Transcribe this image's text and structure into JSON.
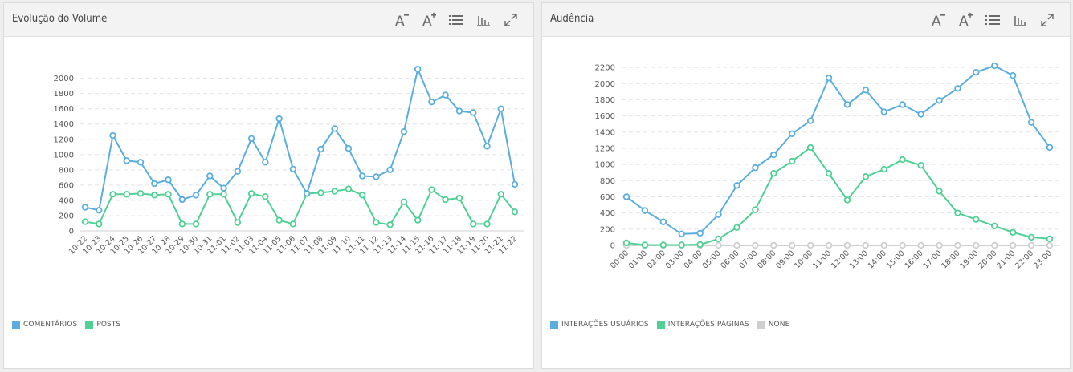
{
  "panels": [
    {
      "title": "Evolução do Volume",
      "legend": [
        {
          "label": "COMENTÁRIOS",
          "color": "#5aaedf"
        },
        {
          "label": "POSTS",
          "color": "#4fd195"
        }
      ]
    },
    {
      "title": "Audência",
      "legend": [
        {
          "label": "INTERAÇÕES USUÁRIOS",
          "color": "#5aaedf"
        },
        {
          "label": "INTERAÇÕES PÁGINAS",
          "color": "#4fd195"
        },
        {
          "label": "NONE",
          "color": "#cfcfcf"
        }
      ]
    }
  ],
  "toolbar_icons": [
    "font-decrease-icon",
    "font-increase-icon",
    "list-icon",
    "bar-chart-icon",
    "expand-icon"
  ],
  "chart_data": [
    {
      "type": "line",
      "title": "Evolução do Volume",
      "xlabel": "",
      "ylabel": "",
      "ylim": [
        0,
        2200
      ],
      "yticks": [
        0,
        200,
        400,
        600,
        800,
        1000,
        1200,
        1400,
        1600,
        1800,
        2000
      ],
      "grid": true,
      "legend_position": "bottom-left",
      "categories": [
        "10-22",
        "10-23",
        "10-24",
        "10-25",
        "10-26",
        "10-27",
        "10-28",
        "10-29",
        "10-30",
        "10-31",
        "11-01",
        "11-02",
        "11-03",
        "11-04",
        "11-05",
        "11-06",
        "11-07",
        "11-08",
        "11-09",
        "11-10",
        "11-11",
        "11-12",
        "11-13",
        "11-14",
        "11-15",
        "11-16",
        "11-17",
        "11-18",
        "11-19",
        "11-20",
        "11-21",
        "11-22"
      ],
      "series": [
        {
          "name": "COMENTÁRIOS",
          "color": "#5aaedf",
          "values": [
            310,
            270,
            1250,
            920,
            900,
            620,
            670,
            410,
            470,
            720,
            560,
            780,
            1210,
            900,
            1470,
            810,
            490,
            1070,
            1340,
            1080,
            720,
            710,
            800,
            1300,
            2120,
            1690,
            1780,
            1570,
            1550,
            1110,
            1600,
            610
          ]
        },
        {
          "name": "POSTS",
          "color": "#4fd195",
          "values": [
            120,
            90,
            480,
            480,
            490,
            470,
            480,
            90,
            90,
            480,
            480,
            110,
            490,
            450,
            140,
            90,
            490,
            500,
            520,
            550,
            470,
            110,
            80,
            380,
            140,
            540,
            410,
            430,
            90,
            90,
            480,
            250
          ]
        }
      ]
    },
    {
      "type": "line",
      "title": "Audência",
      "xlabel": "",
      "ylabel": "",
      "ylim": [
        0,
        2300
      ],
      "yticks": [
        0,
        200,
        400,
        600,
        800,
        1000,
        1200,
        1400,
        1600,
        1800,
        2000,
        2200
      ],
      "grid": true,
      "legend_position": "bottom-left",
      "categories": [
        "00:00",
        "01:00",
        "02:00",
        "03:00",
        "04:00",
        "05:00",
        "06:00",
        "07:00",
        "08:00",
        "09:00",
        "10:00",
        "11:00",
        "12:00",
        "13:00",
        "14:00",
        "15:00",
        "16:00",
        "17:00",
        "18:00",
        "19:00",
        "20:00",
        "21:00",
        "22:00",
        "23:00"
      ],
      "series": [
        {
          "name": "INTERAÇÕES USUÁRIOS",
          "color": "#5aaedf",
          "values": [
            600,
            430,
            290,
            140,
            150,
            380,
            740,
            960,
            1120,
            1380,
            1540,
            2070,
            1740,
            1920,
            1650,
            1740,
            1620,
            1790,
            1940,
            2140,
            2220,
            2100,
            1520,
            1210
          ]
        },
        {
          "name": "INTERAÇÕES PÁGINAS",
          "color": "#4fd195",
          "values": [
            30,
            5,
            5,
            5,
            10,
            80,
            220,
            440,
            890,
            1040,
            1210,
            890,
            560,
            850,
            940,
            1060,
            990,
            670,
            400,
            320,
            240,
            160,
            100,
            80
          ]
        },
        {
          "name": "NONE",
          "color": "#cfcfcf",
          "values": [
            0,
            0,
            0,
            0,
            0,
            0,
            0,
            0,
            0,
            0,
            0,
            0,
            0,
            0,
            0,
            0,
            0,
            0,
            0,
            0,
            0,
            0,
            0,
            0
          ]
        }
      ]
    }
  ]
}
